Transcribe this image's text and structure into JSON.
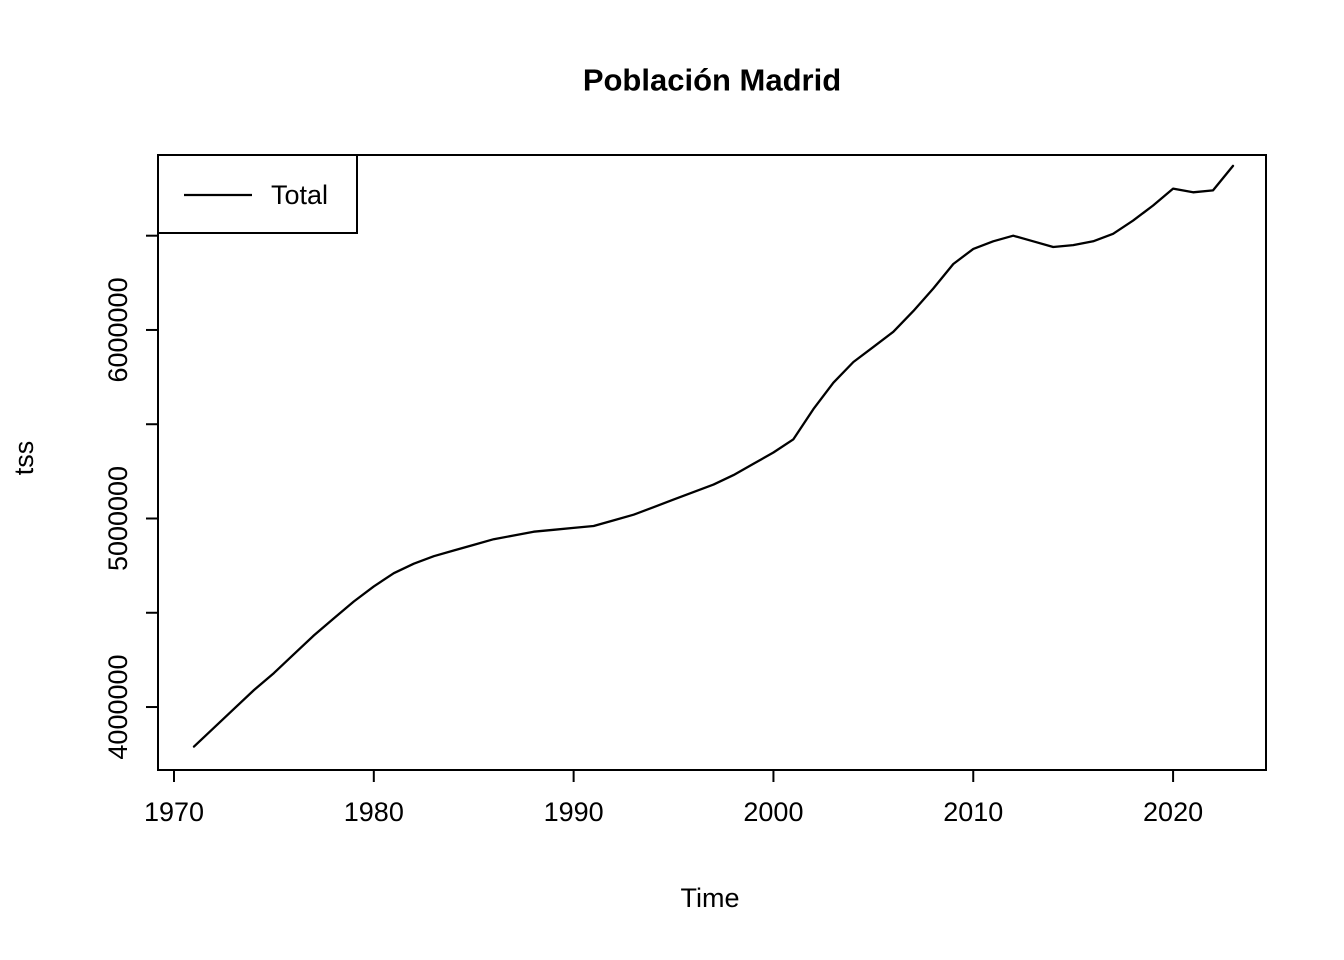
{
  "chart_data": {
    "type": "line",
    "title": "Población Madrid",
    "xlabel": "Time",
    "ylabel": "tss",
    "background": "#ffffff",
    "line_color": "#000000",
    "axis_color": "#000000",
    "grid": false,
    "legend": {
      "position": "topleft",
      "border": true
    },
    "x_axis": {
      "ticks": [
        1970,
        1980,
        1990,
        2000,
        2010,
        2020
      ],
      "range": [
        1969.2,
        2024.65
      ]
    },
    "y_axis": {
      "ticks": [
        4000000,
        4500000,
        5000000,
        5500000,
        6000000,
        6500000
      ],
      "labeled_ticks": [
        4000000,
        5000000,
        6000000
      ],
      "range": [
        3666000,
        6928000
      ]
    },
    "x": [
      1971,
      1972,
      1973,
      1974,
      1975,
      1976,
      1977,
      1978,
      1979,
      1980,
      1981,
      1982,
      1983,
      1984,
      1985,
      1986,
      1987,
      1988,
      1989,
      1990,
      1991,
      1992,
      1993,
      1994,
      1995,
      1996,
      1997,
      1998,
      1999,
      2000,
      2001,
      2002,
      2003,
      2004,
      2005,
      2006,
      2007,
      2008,
      2009,
      2010,
      2011,
      2012,
      2013,
      2014,
      2015,
      2016,
      2017,
      2018,
      2019,
      2020,
      2021,
      2022,
      2023
    ],
    "series": [
      {
        "name": "Total",
        "color": "#000000",
        "values": [
          3790000,
          3890000,
          3990000,
          4090000,
          4180000,
          4280000,
          4380000,
          4470000,
          4560000,
          4640000,
          4710000,
          4760000,
          4800000,
          4830000,
          4860000,
          4890000,
          4910000,
          4930000,
          4940000,
          4950000,
          4960000,
          4990000,
          5020000,
          5060000,
          5100000,
          5140000,
          5180000,
          5230000,
          5290000,
          5350000,
          5420000,
          5580000,
          5720000,
          5830000,
          5910000,
          5990000,
          6100000,
          6220000,
          6350000,
          6430000,
          6470000,
          6500000,
          6470000,
          6440000,
          6450000,
          6470000,
          6510000,
          6580000,
          6660000,
          6750000,
          6730000,
          6740000,
          6870000
        ]
      }
    ]
  }
}
